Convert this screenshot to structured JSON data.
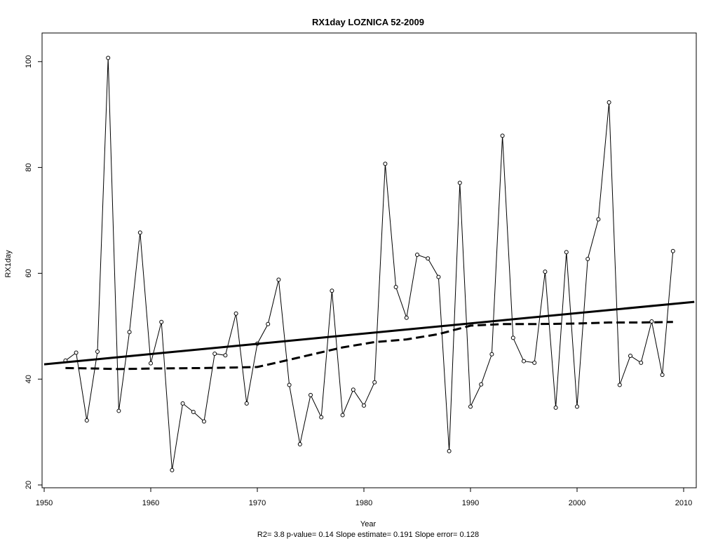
{
  "chart_data": {
    "type": "line",
    "title": "RX1day   LOZNICA 52-2009",
    "xlabel": "Year",
    "ylabel": "RX1day",
    "footer": "R2= 3.8  p-value= 0.14  Slope estimate= 0.191  Slope error= 0.128",
    "xlim": [
      1950,
      2011
    ],
    "ylim": [
      20,
      102
    ],
    "x_ticks": [
      1950,
      1960,
      1970,
      1980,
      1990,
      2000,
      2010
    ],
    "y_ticks": [
      20,
      40,
      60,
      80,
      100
    ],
    "grid": false,
    "series": [
      {
        "style": "observed",
        "x": [
          1952,
          1953,
          1954,
          1955,
          1956,
          1957,
          1958,
          1959,
          1960,
          1961,
          1962,
          1963,
          1964,
          1965,
          1966,
          1967,
          1968,
          1969,
          1970,
          1971,
          1972,
          1973,
          1974,
          1975,
          1976,
          1977,
          1978,
          1979,
          1980,
          1981,
          1982,
          1983,
          1984,
          1985,
          1986,
          1987,
          1988,
          1989,
          1990,
          1991,
          1992,
          1993,
          1994,
          1995,
          1996,
          1997,
          1998,
          1999,
          2000,
          2001,
          2002,
          2003,
          2004,
          2005,
          2006,
          2007,
          2008,
          2009
        ],
        "y": [
          43.5,
          45.0,
          32.2,
          45.2,
          100.7,
          34.0,
          48.9,
          67.7,
          43.0,
          50.8,
          22.8,
          35.4,
          33.8,
          32.0,
          44.8,
          44.5,
          52.4,
          35.4,
          46.7,
          50.4,
          58.8,
          38.9,
          27.7,
          37.0,
          32.8,
          56.7,
          33.2,
          38.0,
          35.0,
          39.4,
          80.7,
          57.4,
          51.6,
          63.5,
          62.8,
          59.3,
          26.4,
          77.1,
          34.8,
          39.0,
          44.7,
          86.0,
          47.8,
          43.4,
          43.1,
          60.3,
          34.6,
          64.0,
          34.8,
          62.7,
          70.2,
          92.3,
          38.9,
          44.4,
          43.1,
          50.9,
          40.8,
          64.2
        ]
      },
      {
        "style": "linear-trend",
        "x": [
          1950,
          2011
        ],
        "y": [
          42.8,
          54.6
        ]
      },
      {
        "style": "smoothed-trend",
        "x": [
          1952,
          1955,
          1957,
          1960,
          1965,
          1968,
          1970,
          1972,
          1975,
          1978,
          1981,
          1984,
          1987,
          1990,
          1993,
          1996,
          2000,
          2003,
          2006,
          2009
        ],
        "y": [
          42.1,
          42.0,
          41.9,
          42.0,
          42.1,
          42.2,
          42.3,
          43.2,
          44.6,
          46.0,
          47.0,
          47.5,
          48.5,
          50.1,
          50.4,
          50.4,
          50.5,
          50.7,
          50.7,
          50.8
        ]
      }
    ]
  }
}
